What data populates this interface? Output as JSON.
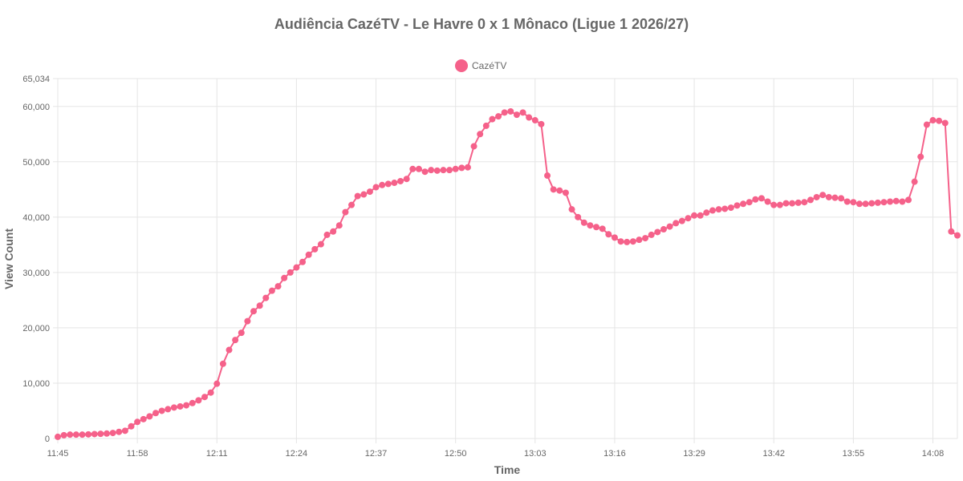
{
  "chart_data": {
    "type": "line",
    "title": "Audiência CazéTV - Le Havre 0 x 1 Mônaco (Ligue 1 2026/27)",
    "xlabel": "Time",
    "ylabel": "View Count",
    "legend_position": "top-center",
    "grid": true,
    "x_start": "11:45",
    "x_step_minutes": 1,
    "x_tick_labels": [
      "11:45",
      "11:58",
      "12:11",
      "12:24",
      "12:37",
      "12:50",
      "13:03",
      "13:16",
      "13:29",
      "13:42",
      "13:55",
      "14:08"
    ],
    "y_tick_labels": [
      "0",
      "10,000",
      "20,000",
      "30,000",
      "40,000",
      "50,000",
      "60,000",
      "65,034"
    ],
    "ylim": [
      0,
      65034
    ],
    "series": [
      {
        "name": "CazéTV",
        "color": "#f5618a",
        "values": [
          300,
          600,
          700,
          700,
          700,
          750,
          800,
          850,
          900,
          1000,
          1200,
          1400,
          2200,
          3000,
          3500,
          4000,
          4600,
          5000,
          5300,
          5600,
          5800,
          6000,
          6400,
          6900,
          7500,
          8300,
          9900,
          13500,
          16000,
          17800,
          19100,
          21200,
          23000,
          24000,
          25400,
          26700,
          27500,
          29000,
          30000,
          30900,
          31900,
          33200,
          34200,
          35100,
          36800,
          37400,
          38500,
          40900,
          42200,
          43800,
          44100,
          44600,
          45400,
          45800,
          46000,
          46200,
          46500,
          46900,
          48700,
          48700,
          48200,
          48500,
          48400,
          48500,
          48500,
          48700,
          48900,
          49000,
          52800,
          55000,
          56500,
          57700,
          58200,
          58900,
          59100,
          58500,
          58900,
          58000,
          57500,
          56800,
          47500,
          45000,
          44800,
          44400,
          41400,
          40000,
          39000,
          38500,
          38200,
          37900,
          36900,
          36300,
          35600,
          35500,
          35600,
          35900,
          36200,
          36800,
          37300,
          37800,
          38300,
          38900,
          39300,
          39800,
          40300,
          40300,
          40800,
          41200,
          41400,
          41500,
          41700,
          42100,
          42400,
          42700,
          43200,
          43400,
          42800,
          42200,
          42200,
          42500,
          42500,
          42600,
          42700,
          43100,
          43600,
          44000,
          43600,
          43500,
          43400,
          42800,
          42700,
          42400,
          42400,
          42500,
          42600,
          42700,
          42800,
          42900,
          42800,
          43100,
          46400,
          50900,
          56700,
          57500,
          57400,
          57000,
          37400,
          36700
        ]
      }
    ]
  }
}
